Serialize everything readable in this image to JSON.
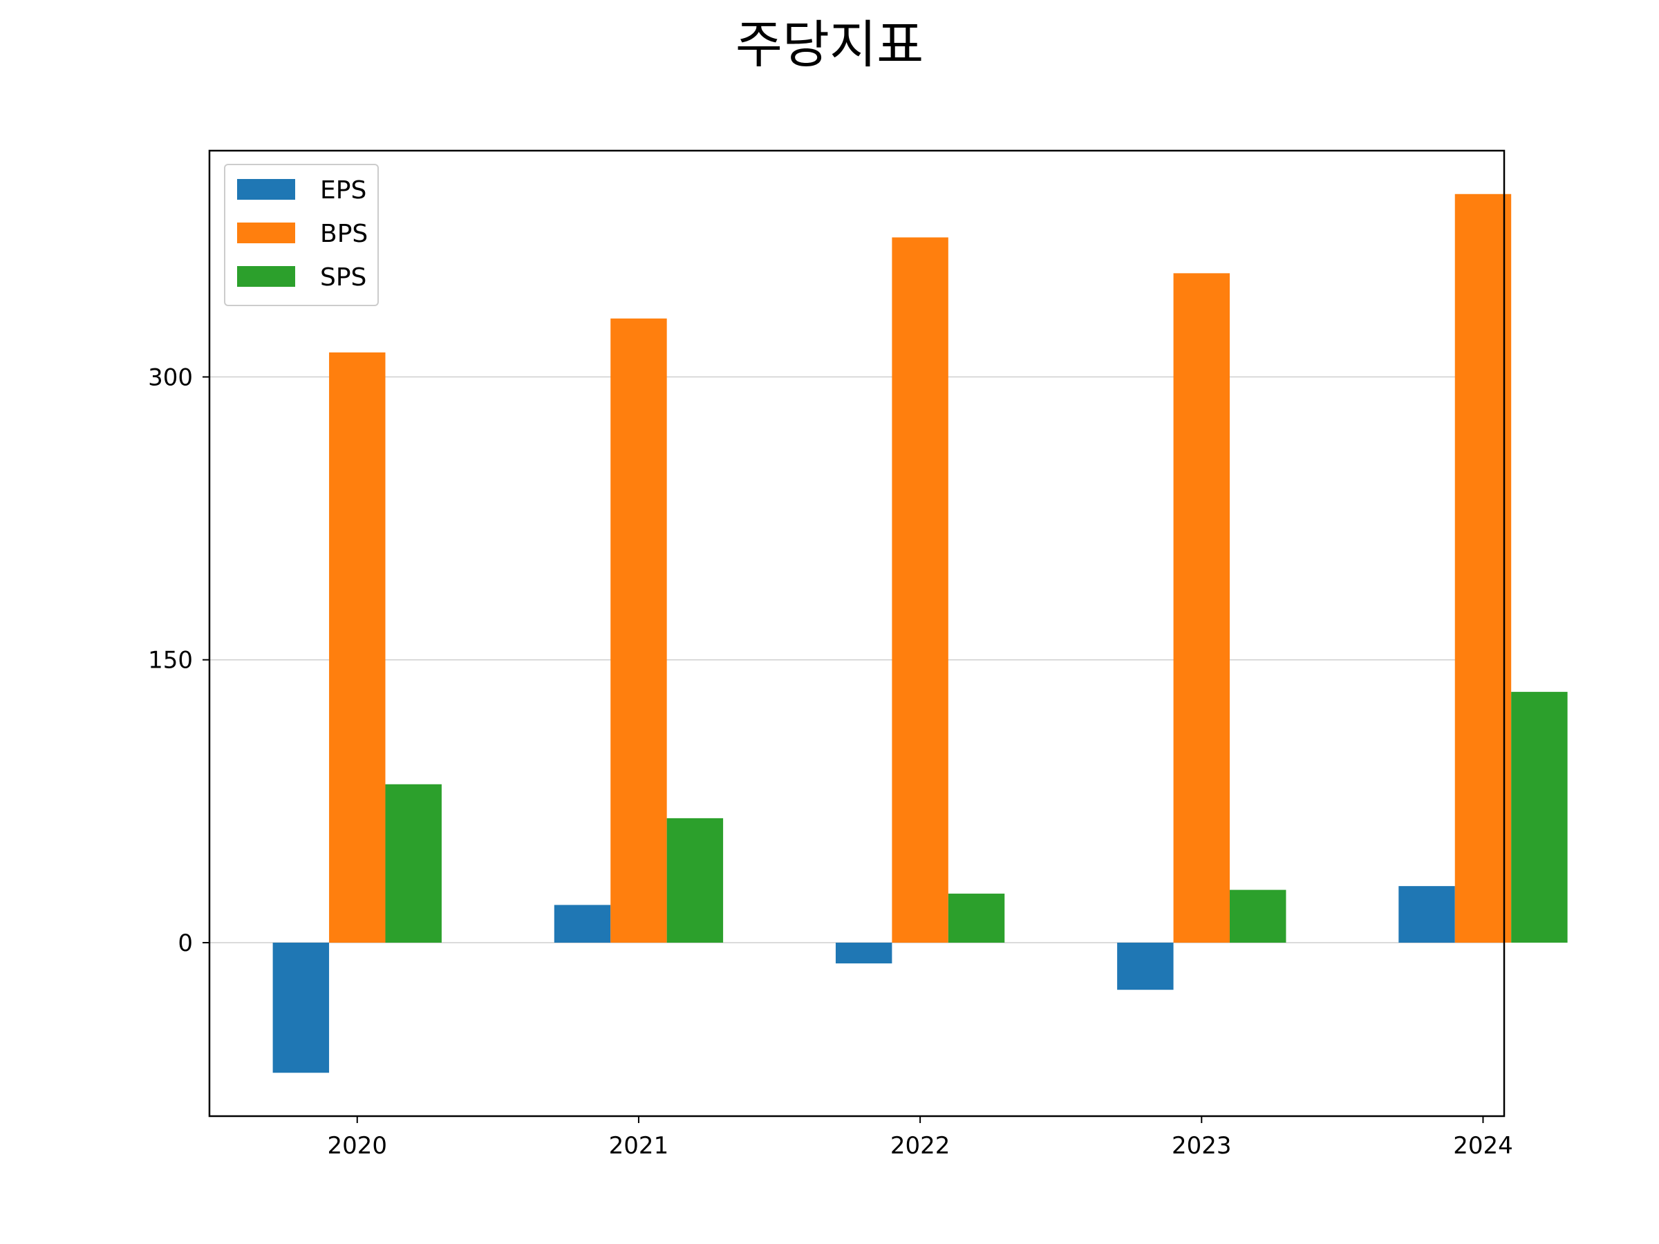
{
  "chart_data": {
    "type": "bar",
    "title": "주당지표",
    "xlabel": "",
    "ylabel": "",
    "categories": [
      "2020",
      "2021",
      "2022",
      "2023",
      "2024"
    ],
    "series": [
      {
        "name": "EPS",
        "color": "#1f77b4",
        "values": [
          -69,
          20,
          -11,
          -25,
          30
        ]
      },
      {
        "name": "BPS",
        "color": "#ff7f0e",
        "values": [
          313,
          331,
          374,
          355,
          397
        ]
      },
      {
        "name": "SPS",
        "color": "#2ca02c",
        "values": [
          84,
          66,
          26,
          28,
          133
        ]
      }
    ],
    "ylim": [
      -92,
      420
    ],
    "yticks": [
      0,
      150,
      300
    ],
    "ytick_labels": [
      "0",
      "150",
      "300"
    ],
    "grid": "y",
    "legend": "top-left"
  }
}
